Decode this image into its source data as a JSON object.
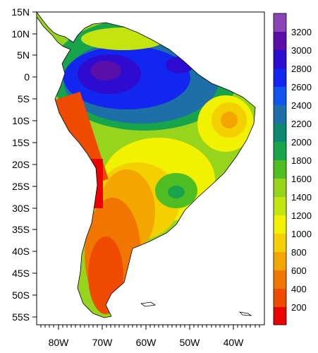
{
  "map": {
    "lat_labels": [
      "15N",
      "10N",
      "5N",
      "0",
      "5S",
      "10S",
      "15S",
      "20S",
      "25S",
      "30S",
      "35S",
      "40S",
      "45S",
      "50S",
      "55S"
    ],
    "lon_labels": [
      "80W",
      "70W",
      "60W",
      "50W",
      "40W"
    ]
  },
  "colorbar": {
    "labels": [
      "3200",
      "3000",
      "2800",
      "2600",
      "2400",
      "2200",
      "2000",
      "1800",
      "1600",
      "1400",
      "1200",
      "1000",
      "800",
      "600",
      "400",
      "200"
    ],
    "colors": [
      "#8a44b8",
      "#5a0fa8",
      "#2d0bcf",
      "#1226f0",
      "#0f55ee",
      "#1d6fa8",
      "#0f8870",
      "#18a44a",
      "#4fbe23",
      "#97d41c",
      "#c4e40f",
      "#f2f200",
      "#f5d000",
      "#f3a500",
      "#f17600",
      "#ee4a00",
      "#ec0000"
    ]
  }
}
